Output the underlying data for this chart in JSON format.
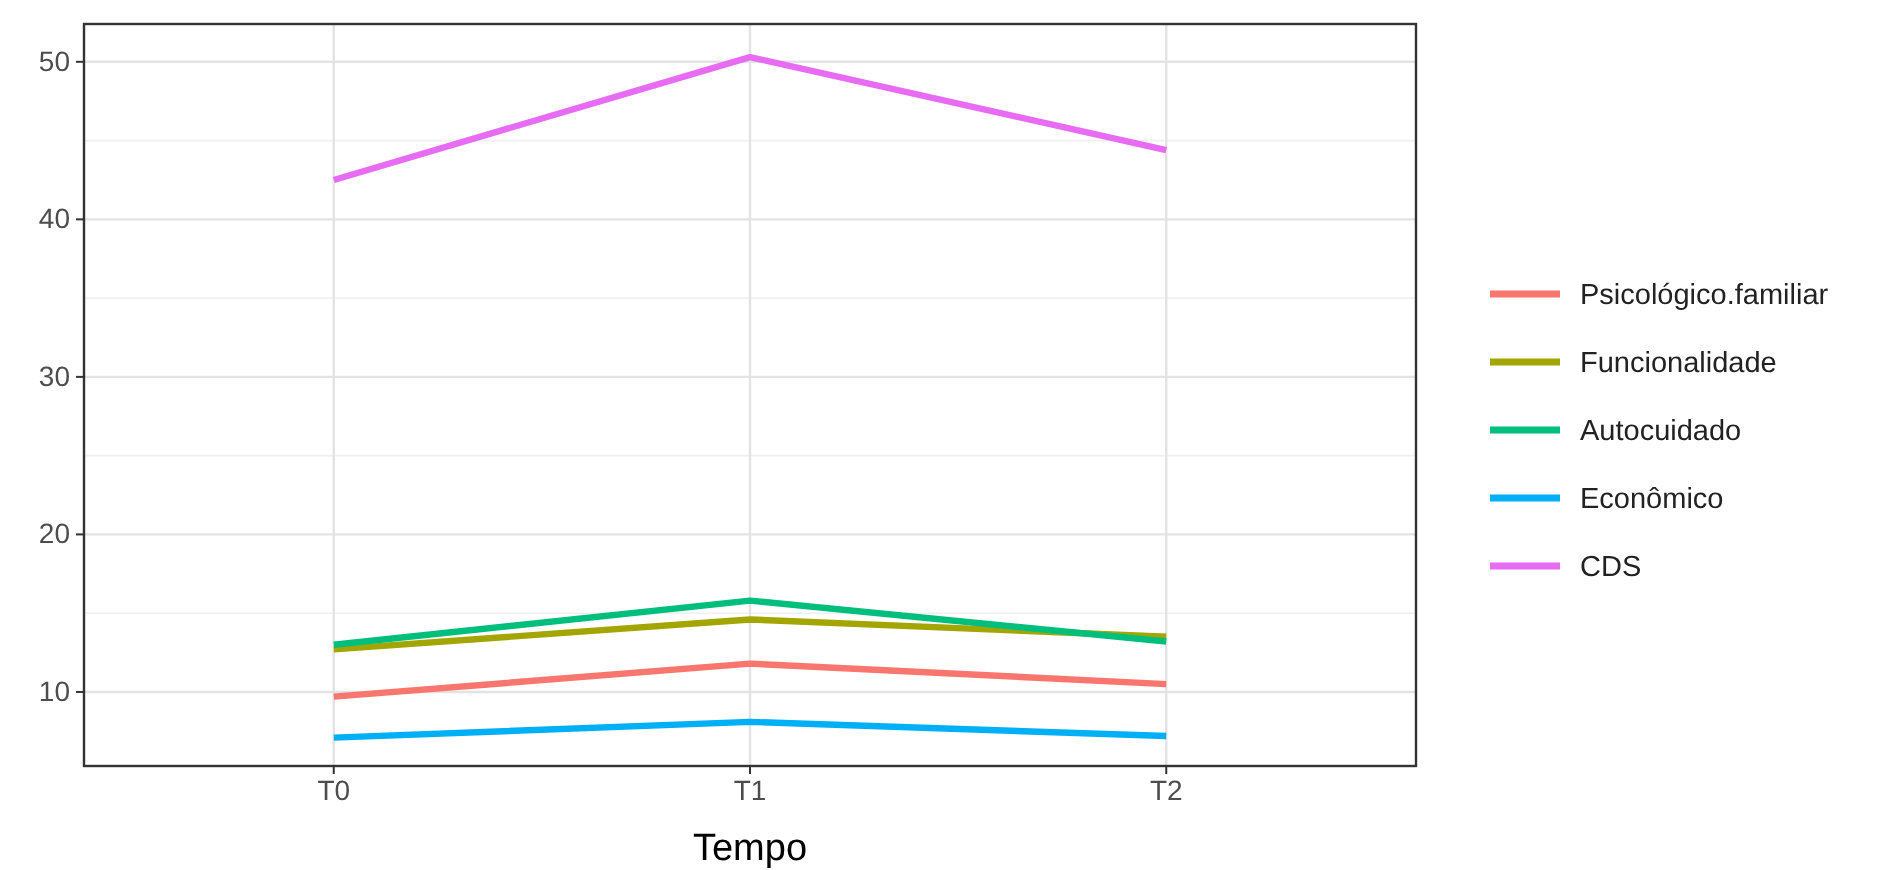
{
  "chart_data": {
    "type": "line",
    "xlabel": "Tempo",
    "categories": [
      "T0",
      "T1",
      "T2"
    ],
    "series": [
      {
        "name": "Psicológico.familiar",
        "color": "#f8766d",
        "values": [
          9.7,
          11.8,
          10.5
        ]
      },
      {
        "name": "Funcionalidade",
        "color": "#a3a500",
        "values": [
          12.7,
          14.6,
          13.5
        ]
      },
      {
        "name": "Autocuidado",
        "color": "#00bf7d",
        "values": [
          13.0,
          15.8,
          13.2
        ]
      },
      {
        "name": "Econômico",
        "color": "#00b0f6",
        "values": [
          7.1,
          8.1,
          7.2
        ]
      },
      {
        "name": "CDS",
        "color": "#e76bf3",
        "values": [
          42.5,
          50.3,
          44.4
        ]
      }
    ],
    "ylim": [
      5.3,
      52.4
    ],
    "yticks": [
      10,
      20,
      30,
      40,
      50
    ],
    "grid": true,
    "legend": "right",
    "marker": "none",
    "line_style": "solid"
  }
}
